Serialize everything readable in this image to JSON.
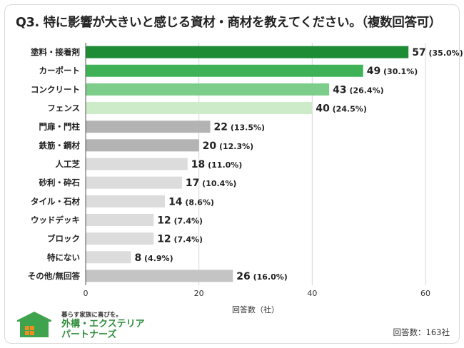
{
  "title": "Q3. 特に影響が大きいと感じる資材・商材を教えてください。（複数回答可）",
  "chart_data": {
    "type": "bar",
    "orientation": "horizontal",
    "categories": [
      "塗料・接着剤",
      "カーポート",
      "コンクリート",
      "フェンス",
      "門扉・門柱",
      "鉄筋・鋼材",
      "人工芝",
      "砂利・砕石",
      "タイル・石材",
      "ウッドデッキ",
      "ブロック",
      "特にない",
      "その他/無回答"
    ],
    "values": [
      57,
      49,
      43,
      40,
      22,
      20,
      18,
      17,
      14,
      12,
      12,
      8,
      26
    ],
    "percents": [
      "35.0",
      "30.1",
      "26.4",
      "24.5",
      "13.5",
      "12.3",
      "11.0",
      "10.4",
      "8.6",
      "7.4",
      "7.4",
      "4.9",
      "16.0"
    ],
    "colors": [
      "#1e8c34",
      "#3fb257",
      "#7ccc8a",
      "#cdebc9",
      "#b3b3b3",
      "#b3b3b3",
      "#dcdcdc",
      "#dcdcdc",
      "#dcdcdc",
      "#dcdcdc",
      "#dcdcdc",
      "#dcdcdc",
      "#c4c4c4"
    ],
    "xlim": [
      0,
      60
    ],
    "xticks": [
      0,
      20,
      40,
      60
    ],
    "xlabel": "回答数（社）",
    "ylabel": "",
    "grid": true
  },
  "footer": {
    "tagline": "暮らす家族に喜びを。",
    "brand_line1": "外構・エクステリア",
    "brand_line2": "パートナーズ",
    "total": "回答数：163社"
  }
}
